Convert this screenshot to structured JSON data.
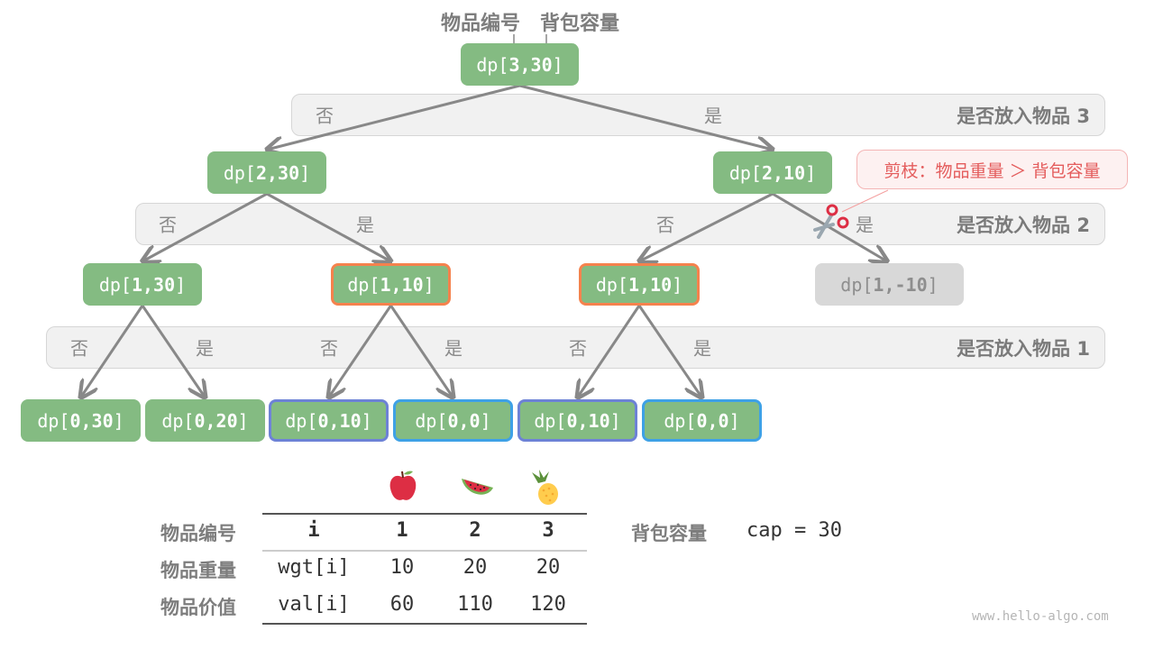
{
  "header": {
    "item_label": "物品编号",
    "capacity_label": "背包容量"
  },
  "bands": [
    {
      "title": "是否放入物品 3",
      "branches": [
        "否",
        "是"
      ]
    },
    {
      "title": "是否放入物品 2",
      "branches": [
        "否",
        "是",
        "否",
        "是"
      ]
    },
    {
      "title": "是否放入物品 1",
      "branches": [
        "否",
        "是",
        "否",
        "是",
        "否",
        "是"
      ]
    }
  ],
  "nodes": [
    {
      "prefix": "dp[",
      "args": "3,30",
      "suffix": "]",
      "style": "normal"
    },
    {
      "prefix": "dp[",
      "args": "2,30",
      "suffix": "]",
      "style": "normal"
    },
    {
      "prefix": "dp[",
      "args": "2,10",
      "suffix": "]",
      "style": "normal"
    },
    {
      "prefix": "dp[",
      "args": "1,30",
      "suffix": "]",
      "style": "normal"
    },
    {
      "prefix": "dp[",
      "args": "1,10",
      "suffix": "]",
      "style": "orange"
    },
    {
      "prefix": "dp[",
      "args": "1,10",
      "suffix": "]",
      "style": "orange"
    },
    {
      "prefix": "dp[",
      "args": "1,-10",
      "suffix": "]",
      "style": "pruned"
    },
    {
      "prefix": "dp[",
      "args": "0,30",
      "suffix": "]",
      "style": "normal"
    },
    {
      "prefix": "dp[",
      "args": "0,20",
      "suffix": "]",
      "style": "normal"
    },
    {
      "prefix": "dp[",
      "args": "0,10",
      "suffix": "]",
      "style": "purple"
    },
    {
      "prefix": "dp[",
      "args": "0,0",
      "suffix": "]",
      "style": "blue"
    },
    {
      "prefix": "dp[",
      "args": "0,10",
      "suffix": "]",
      "style": "purple"
    },
    {
      "prefix": "dp[",
      "args": "0,0",
      "suffix": "]",
      "style": "blue"
    }
  ],
  "callout": {
    "text": "剪枝：物品重量 ＞ 背包容量",
    "icon": "scissors-icon"
  },
  "colors": {
    "node": "#84bb82",
    "pruned": "#d8d8d8",
    "orange": "#f5824d",
    "purple": "#6d82d6",
    "blue": "#3ea1e6",
    "edge": "#888888"
  },
  "table": {
    "fruits": [
      "apple-icon",
      "watermelon-icon",
      "pineapple-icon"
    ],
    "rows": [
      {
        "label": "物品编号",
        "cells": [
          "i",
          "1",
          "2",
          "3"
        ]
      },
      {
        "label": "物品重量",
        "cells": [
          "wgt[i]",
          "10",
          "20",
          "20"
        ]
      },
      {
        "label": "物品价值",
        "cells": [
          "val[i]",
          "60",
          "110",
          "120"
        ]
      }
    ]
  },
  "capacity": {
    "label": "背包容量",
    "value": "cap = 30"
  },
  "watermark": "www.hello-algo.com"
}
